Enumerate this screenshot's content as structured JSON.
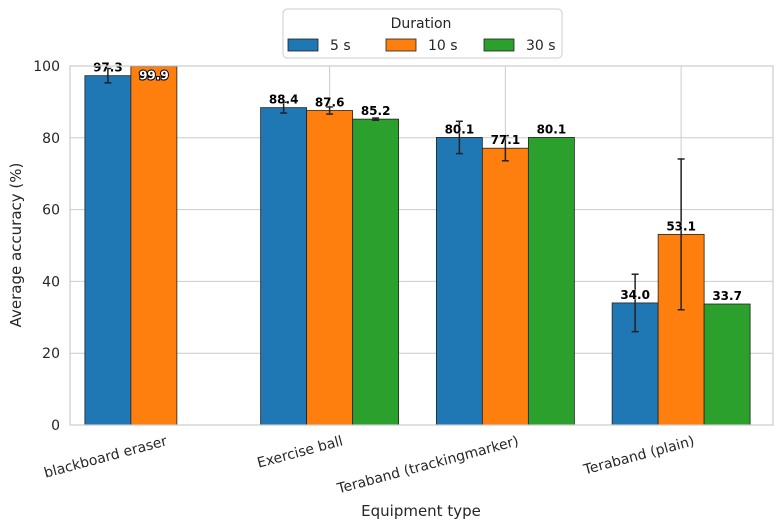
{
  "chart_data": {
    "type": "bar",
    "xlabel": "Equipment type",
    "ylabel": "Average accuracy (%)",
    "ylim": [
      0,
      100
    ],
    "yticks": [
      0,
      20,
      40,
      60,
      80,
      100
    ],
    "grid": true,
    "legend": {
      "title": "Duration",
      "placement": "top-center"
    },
    "categories": [
      "blackboard eraser",
      "Exercise ball",
      "Teraband (trackingmarker)",
      "Teraband (plain)"
    ],
    "series": [
      {
        "name": "5 s",
        "color": "#1f77b4",
        "values": [
          97.3,
          88.4,
          80.1,
          34.0
        ],
        "labels": [
          "97.3",
          "88.4",
          "80.1",
          "34.0"
        ],
        "errors": [
          2.0,
          1.5,
          4.5,
          8.0
        ]
      },
      {
        "name": "10 s",
        "color": "#ff7f0e",
        "values": [
          99.9,
          87.6,
          77.1,
          53.1
        ],
        "labels": [
          "99.9",
          "87.6",
          "77.1",
          "53.1"
        ],
        "errors": [
          0.0,
          1.0,
          3.5,
          21.0
        ]
      },
      {
        "name": "30 s",
        "color": "#2ca02c",
        "values": [
          null,
          85.2,
          80.1,
          33.7
        ],
        "labels": [
          "",
          "85.2",
          "80.1",
          "33.7"
        ],
        "errors": [
          null,
          0.3,
          0.0,
          0.0
        ]
      }
    ]
  }
}
